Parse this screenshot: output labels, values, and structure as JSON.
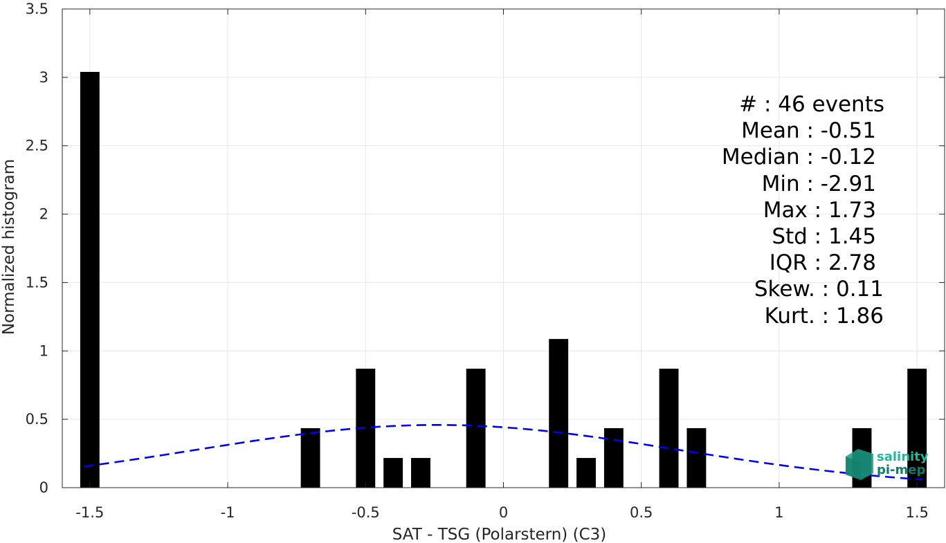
{
  "chart_data": {
    "type": "bar",
    "xlabel": "SAT - TSG (Polarstern) (C3)",
    "ylabel": "Normalized histogram",
    "xlim": [
      -1.6,
      1.6
    ],
    "ylim": [
      0,
      3.5
    ],
    "xticks": [
      -1.5,
      -1,
      -0.5,
      0,
      0.5,
      1,
      1.5
    ],
    "xtick_labels": [
      "-1.5",
      "-1",
      "-0.5",
      "0",
      "0.5",
      "1",
      "1.5"
    ],
    "yticks": [
      0,
      0.5,
      1,
      1.5,
      2,
      2.5,
      3,
      3.5
    ],
    "ytick_labels": [
      "0",
      "0.5",
      "1",
      "1.5",
      "2",
      "2.5",
      "3",
      "3.5"
    ],
    "grid": true,
    "bar_color": "#000000",
    "bins": [
      {
        "x": -1.5,
        "value": 3.04
      },
      {
        "x": -0.7,
        "value": 0.435
      },
      {
        "x": -0.5,
        "value": 0.87
      },
      {
        "x": -0.4,
        "value": 0.217
      },
      {
        "x": -0.3,
        "value": 0.217
      },
      {
        "x": -0.1,
        "value": 0.87
      },
      {
        "x": 0.2,
        "value": 1.087
      },
      {
        "x": 0.3,
        "value": 0.217
      },
      {
        "x": 0.4,
        "value": 0.435
      },
      {
        "x": 0.6,
        "value": 0.87
      },
      {
        "x": 0.7,
        "value": 0.435
      },
      {
        "x": 1.3,
        "value": 0.435
      },
      {
        "x": 1.5,
        "value": 0.87
      }
    ],
    "fit_curve": {
      "style": "dashed",
      "color": "#0000ee",
      "mean": -0.24,
      "std": 0.87,
      "x_range": [
        -1.52,
        1.52
      ]
    },
    "stats_lines": [
      "#  : 46 events",
      "Mean : -0.51",
      "Median : -0.12",
      "Min : -2.91",
      "Max : 1.73",
      "Std : 1.45",
      "IQR : 2.78",
      "Skew. : 0.11",
      "Kurt. : 1.86"
    ]
  },
  "logo": {
    "line1": "salinity",
    "line2": "pi-mep",
    "color1": "#1fb89a",
    "color2": "#0f7d6e"
  }
}
